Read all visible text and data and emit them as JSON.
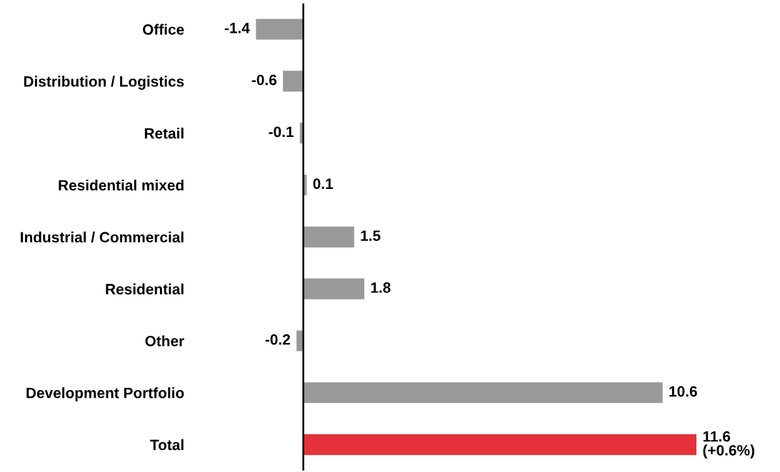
{
  "chart_data": {
    "type": "bar",
    "orientation": "horizontal",
    "categories": [
      "Office",
      "Distribution / Logistics",
      "Retail",
      "Residential mixed",
      "Industrial / Commercial",
      "Residential",
      "Other",
      "Development Portfolio",
      "Total"
    ],
    "values": [
      -1.4,
      -0.6,
      -0.1,
      0.1,
      1.5,
      1.8,
      -0.2,
      10.6,
      11.6
    ],
    "colors": [
      "#999999",
      "#999999",
      "#999999",
      "#999999",
      "#999999",
      "#999999",
      "#999999",
      "#999999",
      "#e4333a"
    ],
    "value_labels": [
      "-1.4",
      "-0.6",
      "-0.1",
      "0.1",
      "1.5",
      "1.8",
      "-0.2",
      "10.6",
      "11.6\n(+0.6%)"
    ],
    "grid": false,
    "legend": false
  }
}
